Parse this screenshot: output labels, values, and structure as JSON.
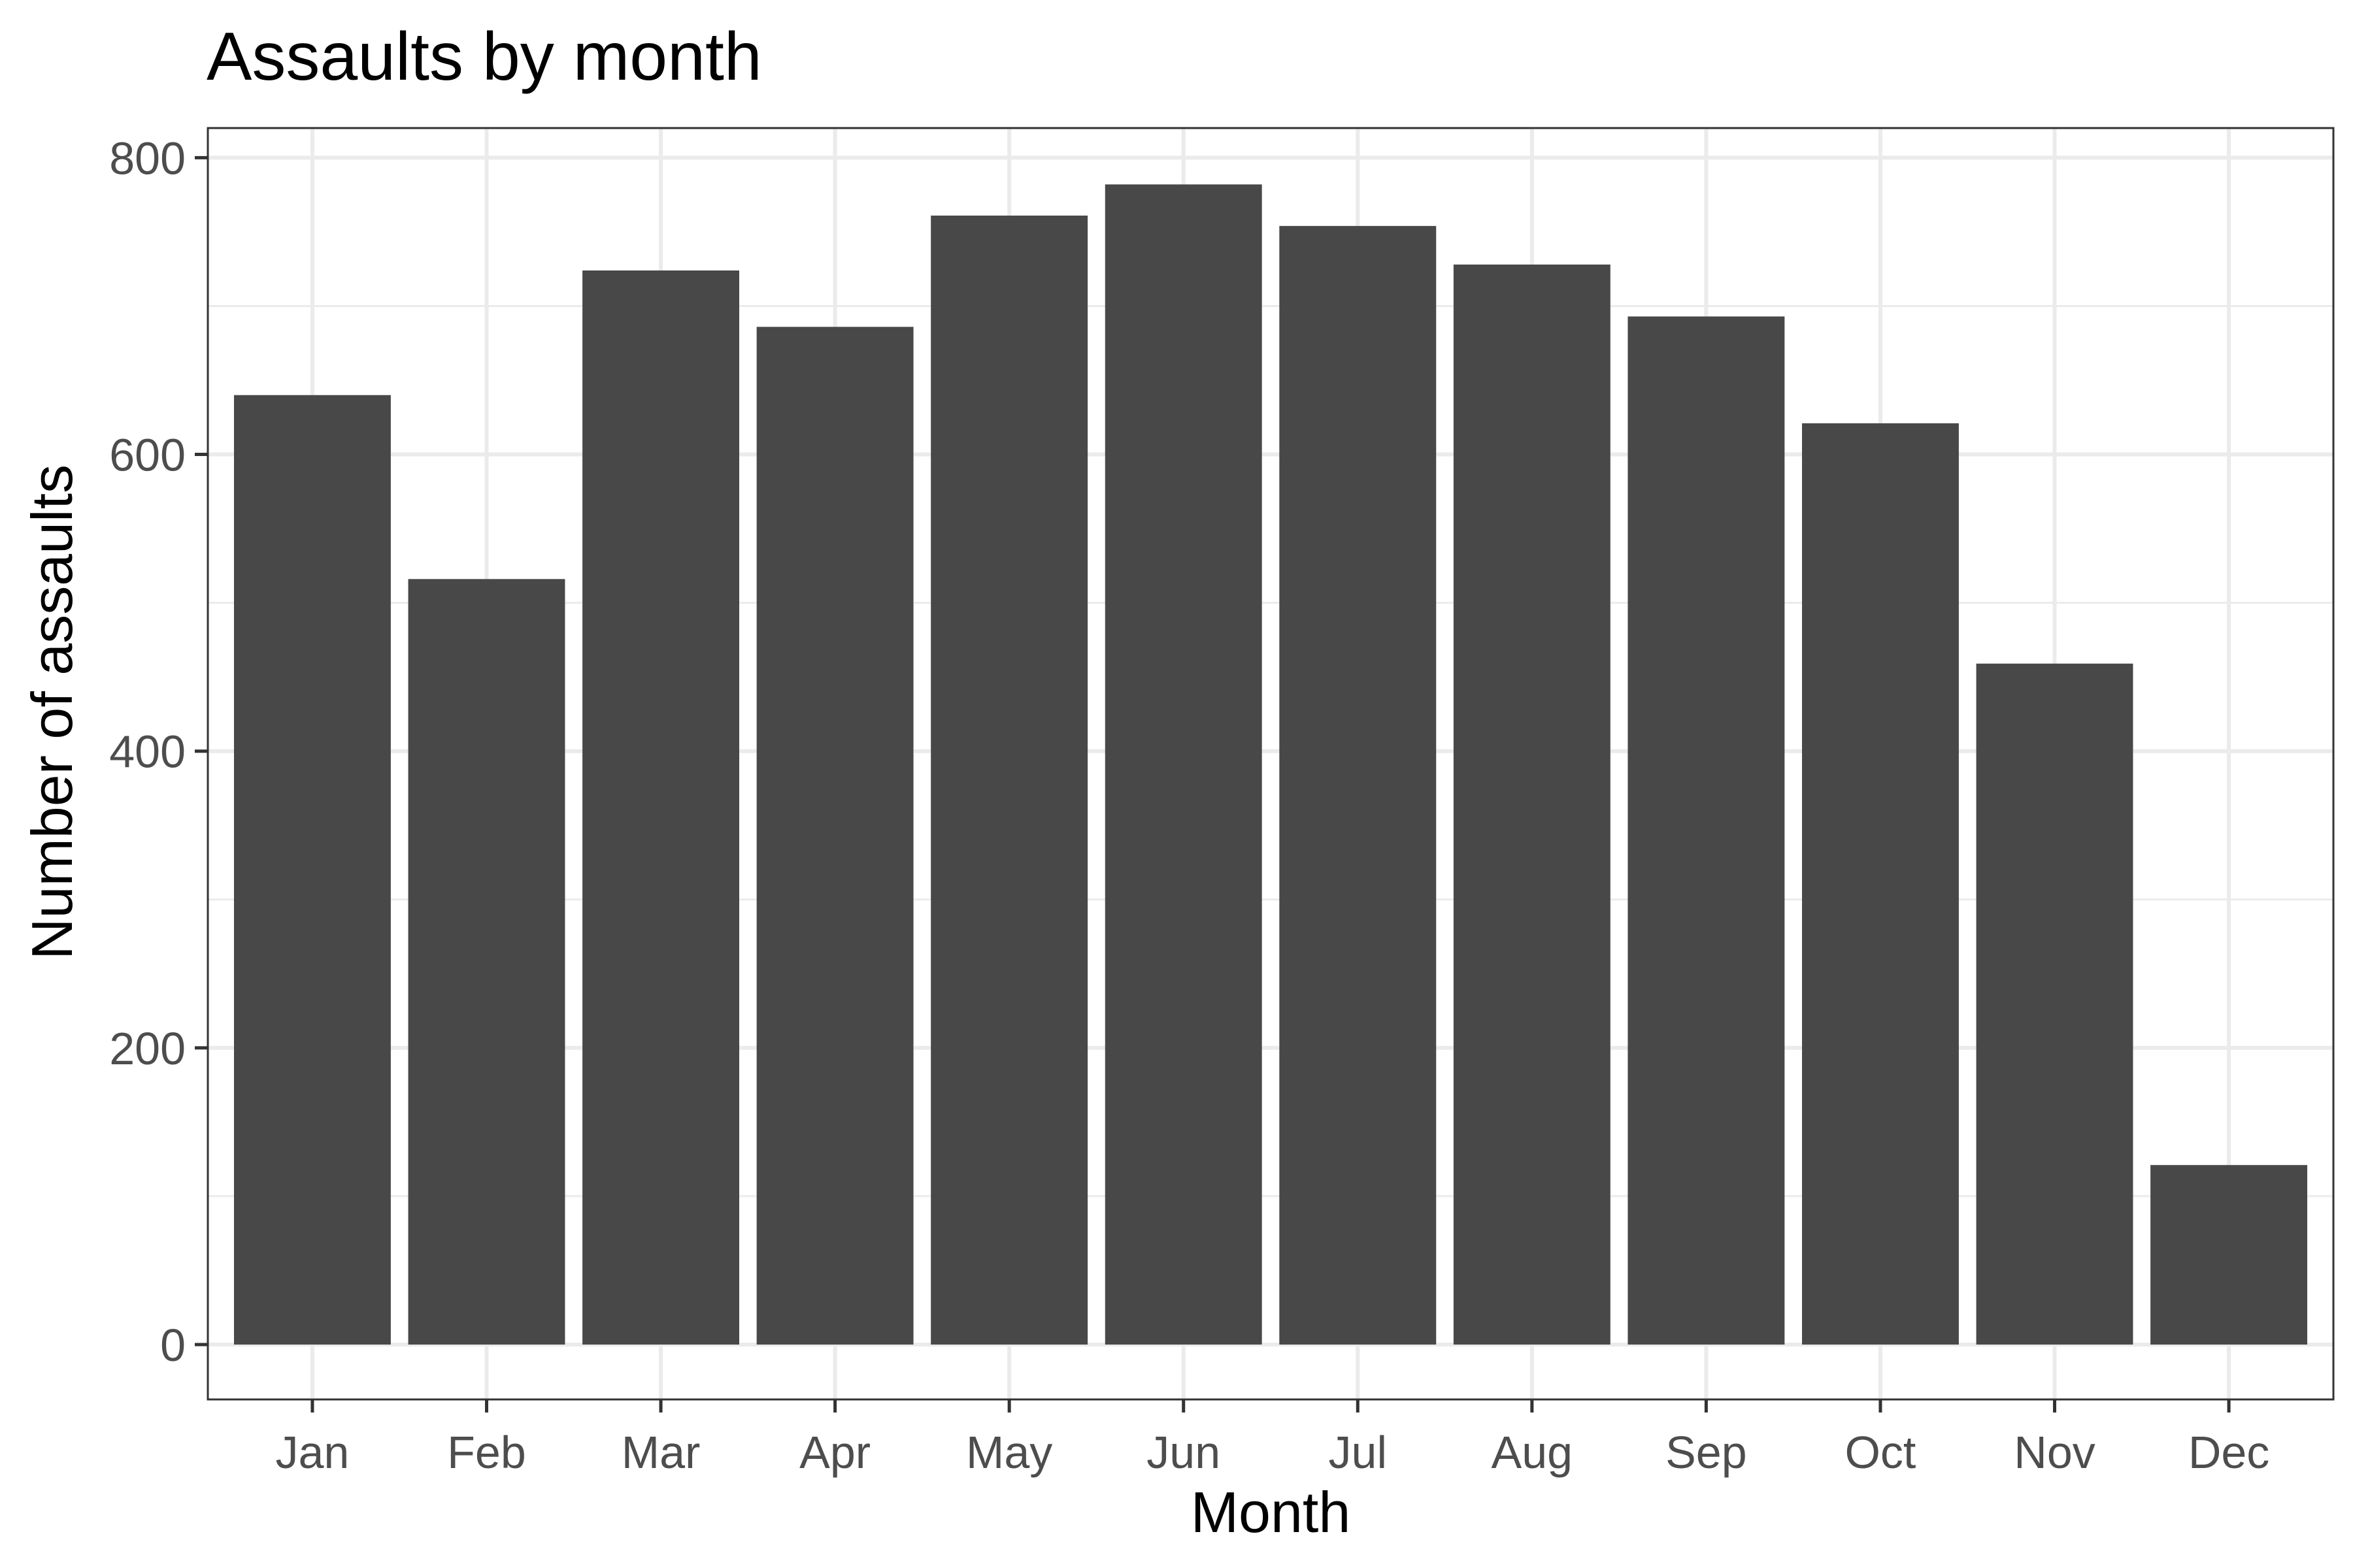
{
  "chart_data": {
    "type": "bar",
    "title": "Assaults by month",
    "xlabel": "Month",
    "ylabel": "Number of assaults",
    "categories": [
      "Jan",
      "Feb",
      "Mar",
      "Apr",
      "May",
      "Jun",
      "Jul",
      "Aug",
      "Sep",
      "Oct",
      "Nov",
      "Dec"
    ],
    "values": [
      640,
      516,
      724,
      686,
      761,
      782,
      754,
      728,
      693,
      621,
      459,
      121
    ],
    "ylim": [
      -37,
      820
    ],
    "yticks": [
      0,
      200,
      400,
      600,
      800
    ],
    "yticks_labels": [
      "0",
      "200",
      "400",
      "600",
      "800"
    ],
    "grid": true,
    "legend": "none",
    "bar_color": "#484848"
  }
}
